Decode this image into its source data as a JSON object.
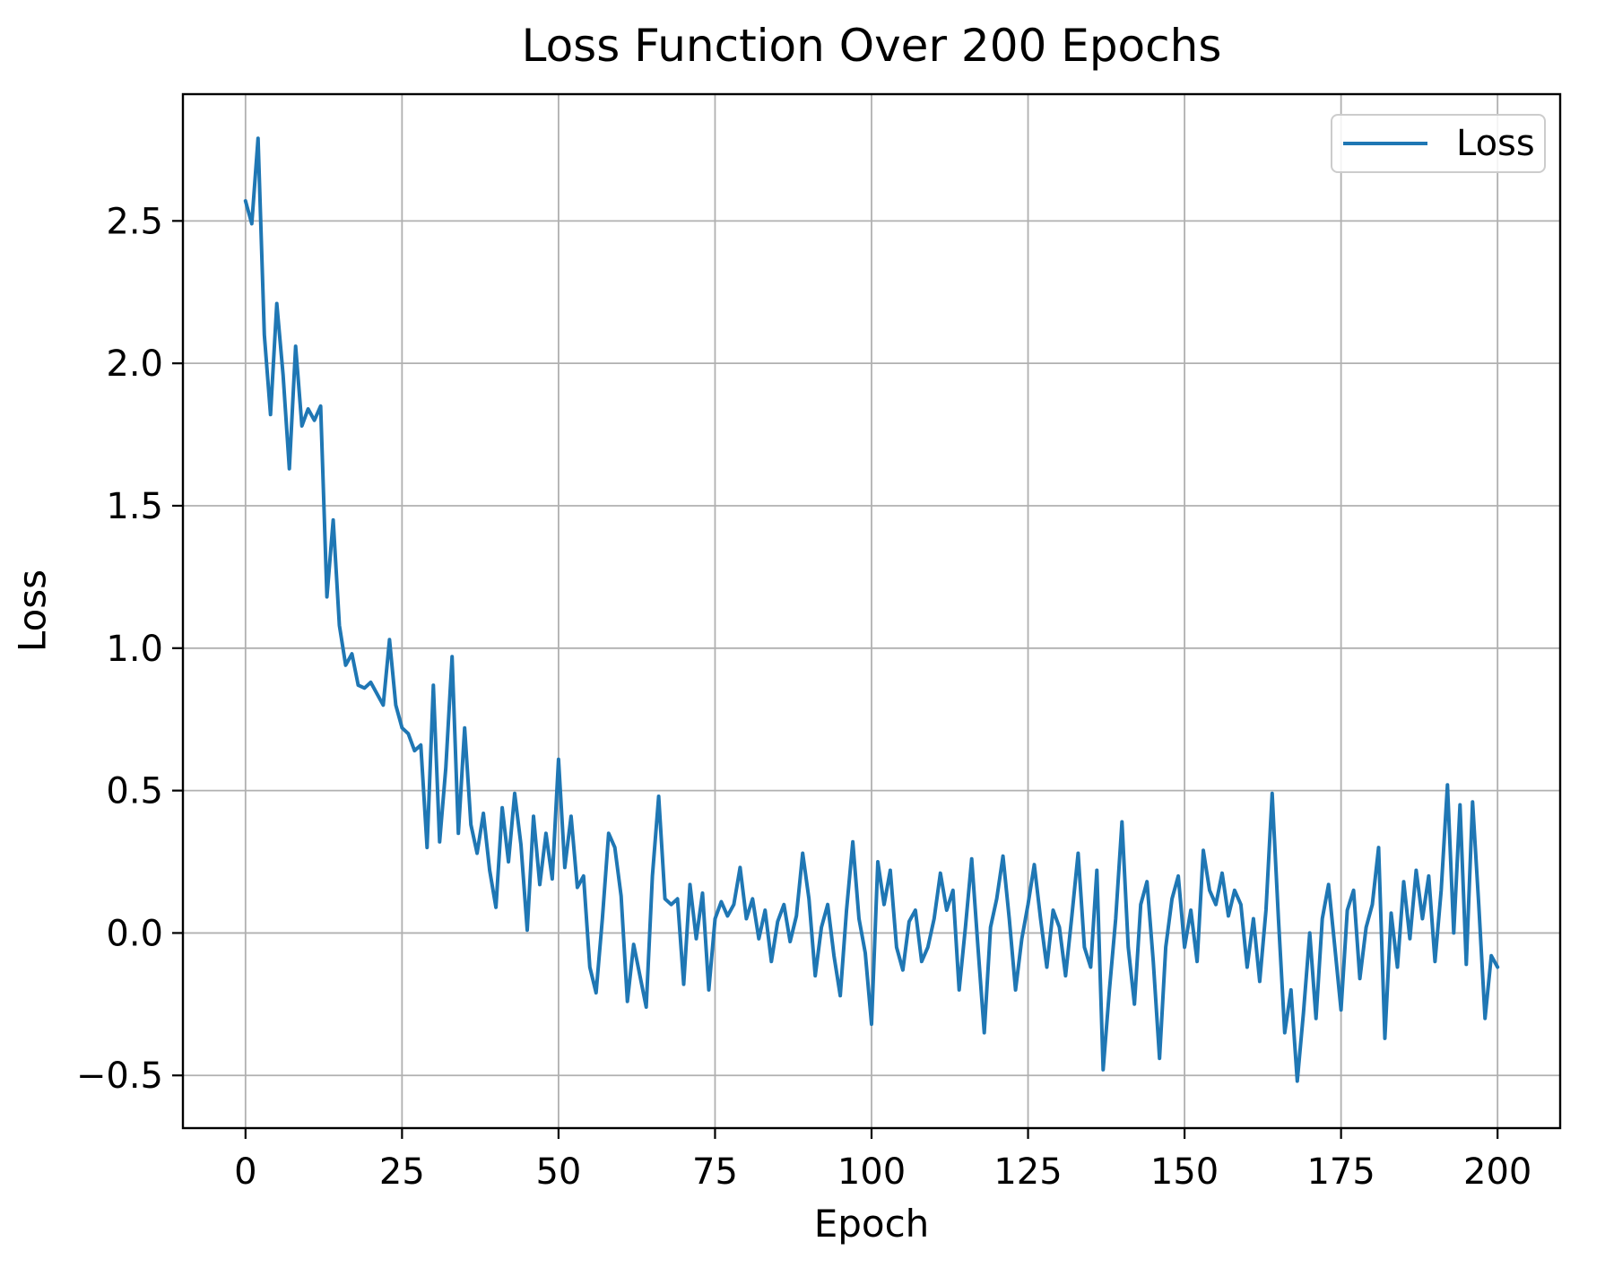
{
  "figure": {
    "background": "#ffffff"
  },
  "chart_data": {
    "type": "line",
    "title": "Loss Function Over 200 Epochs",
    "xlabel": "Epoch",
    "ylabel": "Loss",
    "legend": {
      "position": "upper right",
      "entries": [
        {
          "label": "Loss",
          "color": "#1f77b4"
        }
      ]
    },
    "grid": true,
    "grid_color": "#b0b0b0",
    "frame_color": "#000000",
    "line_color": "#1f77b4",
    "line_width": 4,
    "xlim": [
      -10,
      210
    ],
    "ylim": [
      -0.685,
      2.945
    ],
    "xticks": {
      "values": [
        0,
        25,
        50,
        75,
        100,
        125,
        150,
        175,
        200
      ],
      "labels": [
        "0",
        "25",
        "50",
        "75",
        "100",
        "125",
        "150",
        "175",
        "200"
      ]
    },
    "yticks": {
      "values": [
        -0.5,
        0.0,
        0.5,
        1.0,
        1.5,
        2.0,
        2.5
      ],
      "labels": [
        "−0.5",
        "0.0",
        "0.5",
        "1.0",
        "1.5",
        "2.0",
        "2.5"
      ]
    },
    "x_note": "x value = epoch = array index, 0 through 200",
    "series": [
      {
        "name": "Loss",
        "color": "#1f77b4",
        "values": [
          2.57,
          2.49,
          2.79,
          2.1,
          1.82,
          2.21,
          1.96,
          1.63,
          2.06,
          1.78,
          1.84,
          1.8,
          1.85,
          1.18,
          1.45,
          1.08,
          0.94,
          0.98,
          0.87,
          0.86,
          0.88,
          0.84,
          0.8,
          1.03,
          0.8,
          0.72,
          0.7,
          0.64,
          0.66,
          0.3,
          0.87,
          0.32,
          0.58,
          0.97,
          0.35,
          0.72,
          0.38,
          0.28,
          0.42,
          0.22,
          0.09,
          0.44,
          0.25,
          0.49,
          0.31,
          0.01,
          0.41,
          0.17,
          0.35,
          0.19,
          0.61,
          0.23,
          0.41,
          0.16,
          0.2,
          -0.12,
          -0.21,
          0.05,
          0.35,
          0.3,
          0.13,
          -0.24,
          -0.04,
          -0.15,
          -0.26,
          0.2,
          0.48,
          0.12,
          0.1,
          0.12,
          -0.18,
          0.17,
          -0.02,
          0.14,
          -0.2,
          0.05,
          0.11,
          0.06,
          0.1,
          0.23,
          0.05,
          0.12,
          -0.02,
          0.08,
          -0.1,
          0.04,
          0.1,
          -0.03,
          0.06,
          0.28,
          0.12,
          -0.15,
          0.02,
          0.1,
          -0.08,
          -0.22,
          0.08,
          0.32,
          0.05,
          -0.07,
          -0.32,
          0.25,
          0.1,
          0.22,
          -0.05,
          -0.13,
          0.04,
          0.08,
          -0.1,
          -0.05,
          0.05,
          0.21,
          0.08,
          0.15,
          -0.2,
          0.02,
          0.26,
          -0.05,
          -0.35,
          0.02,
          0.12,
          0.27,
          0.05,
          -0.2,
          -0.02,
          0.1,
          0.24,
          0.05,
          -0.12,
          0.08,
          0.02,
          -0.15,
          0.06,
          0.28,
          -0.05,
          -0.12,
          0.22,
          -0.48,
          -0.2,
          0.05,
          0.39,
          -0.05,
          -0.25,
          0.1,
          0.18,
          -0.1,
          -0.44,
          -0.05,
          0.12,
          0.2,
          -0.05,
          0.08,
          -0.1,
          0.29,
          0.15,
          0.1,
          0.21,
          0.06,
          0.15,
          0.1,
          -0.12,
          0.05,
          -0.17,
          0.08,
          0.49,
          0.05,
          -0.35,
          -0.2,
          -0.52,
          -0.28,
          0.0,
          -0.3,
          0.05,
          0.17,
          -0.05,
          -0.27,
          0.08,
          0.15,
          -0.16,
          0.02,
          0.1,
          0.3,
          -0.37,
          0.07,
          -0.12,
          0.18,
          -0.02,
          0.22,
          0.05,
          0.2,
          -0.1,
          0.15,
          0.52,
          0.0,
          0.45,
          -0.11,
          0.46,
          0.1,
          -0.3,
          -0.08,
          -0.12
        ]
      }
    ]
  }
}
